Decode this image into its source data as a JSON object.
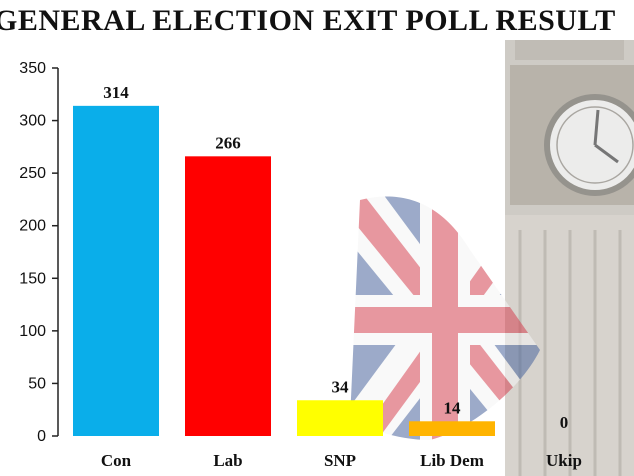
{
  "title": "GENERAL ELECTION EXIT POLL RESULT",
  "chart_data": {
    "type": "bar",
    "title": "GENERAL ELECTION EXIT POLL RESULT",
    "categories": [
      "Con",
      "Lab",
      "SNP",
      "Lib Dem",
      "Ukip"
    ],
    "values": [
      314,
      266,
      34,
      14,
      0
    ],
    "data_labels": [
      "314",
      "266",
      "34",
      "14",
      "0"
    ],
    "colors": [
      "#0AAEEA",
      "#FF0000",
      "#FFFF00",
      "#FFB400",
      "#FFFFFF"
    ],
    "ylim": [
      0,
      350
    ],
    "yticks": [
      0,
      50,
      100,
      150,
      200,
      250,
      300,
      350
    ],
    "xlabel": "",
    "ylabel": "",
    "grid": false,
    "legend": "none"
  }
}
